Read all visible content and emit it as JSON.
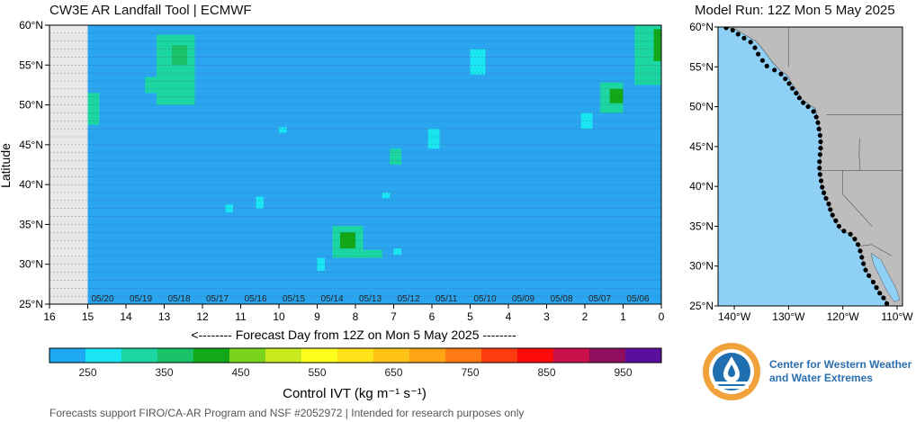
{
  "page": {
    "title": "CW3E AR Landfall Tool | ECMWF",
    "model_run": "Model Run: 12Z Mon 5 May 2025",
    "footer": "Forecasts support FIRO/CA-AR Program and NSF #2052972 | Intended for research purposes only",
    "org_line1": "Center for Western Weather",
    "org_line2": "and Water Extremes"
  },
  "colors": {
    "background_field": "#2aa6f0",
    "missing": "#e8e8e8",
    "land": "#bdbdbd",
    "ocean": "#8fd0f7",
    "landfall_point": "#000000"
  },
  "chart_data": [
    {
      "type": "heatmap",
      "title": "",
      "xlabel": "<-------- Forecast Day from 12Z on Mon 5 May 2025 --------",
      "ylabel": "Latitude",
      "x_ticks": [
        16,
        15,
        14,
        13,
        12,
        11,
        10,
        9,
        8,
        7,
        6,
        5,
        4,
        3,
        2,
        1,
        0
      ],
      "x_range": [
        16,
        0
      ],
      "y_ticks": [
        "25°N",
        "30°N",
        "35°N",
        "40°N",
        "45°N",
        "50°N",
        "55°N",
        "60°N"
      ],
      "y_tick_values": [
        25,
        30,
        35,
        40,
        45,
        50,
        55,
        60
      ],
      "y_range": [
        25,
        60
      ],
      "date_labels": [
        {
          "day": 15,
          "label": "05/20"
        },
        {
          "day": 14,
          "label": "05/19"
        },
        {
          "day": 13,
          "label": "05/18"
        },
        {
          "day": 12,
          "label": "05/17"
        },
        {
          "day": 11,
          "label": "05/16"
        },
        {
          "day": 10,
          "label": "05/15"
        },
        {
          "day": 9,
          "label": "05/14"
        },
        {
          "day": 8,
          "label": "05/13"
        },
        {
          "day": 7,
          "label": "05/12"
        },
        {
          "day": 6,
          "label": "05/11"
        },
        {
          "day": 5,
          "label": "05/10"
        },
        {
          "day": 4,
          "label": "05/09"
        },
        {
          "day": 3,
          "label": "05/08"
        },
        {
          "day": 2,
          "label": "05/07"
        },
        {
          "day": 1,
          "label": "05/06"
        }
      ],
      "missing_range_days": [
        16,
        15
      ],
      "ivt_blobs": [
        {
          "day_start": 15.0,
          "day_end": 14.7,
          "lat_start": 47.5,
          "lat_end": 51.5,
          "ivt": 300
        },
        {
          "day_start": 13.2,
          "day_end": 12.2,
          "lat_start": 50.0,
          "lat_end": 58.8,
          "ivt": 320
        },
        {
          "day_start": 12.8,
          "day_end": 12.4,
          "lat_start": 55.0,
          "lat_end": 57.5,
          "ivt": 390
        },
        {
          "day_start": 13.5,
          "day_end": 12.9,
          "lat_start": 51.5,
          "lat_end": 53.5,
          "ivt": 300
        },
        {
          "day_start": 1.6,
          "day_end": 1.0,
          "lat_start": 49.0,
          "lat_end": 52.8,
          "ivt": 330
        },
        {
          "day_start": 1.35,
          "day_end": 1.0,
          "lat_start": 50.2,
          "lat_end": 52.0,
          "ivt": 400
        },
        {
          "day_start": 0.7,
          "day_end": 0.0,
          "lat_start": 52.5,
          "lat_end": 60.0,
          "ivt": 310
        },
        {
          "day_start": 0.2,
          "day_end": 0.0,
          "lat_start": 55.5,
          "lat_end": 59.5,
          "ivt": 420
        },
        {
          "day_start": 8.6,
          "day_end": 7.8,
          "lat_start": 30.8,
          "lat_end": 34.8,
          "ivt": 320
        },
        {
          "day_start": 8.4,
          "day_end": 8.0,
          "lat_start": 32.0,
          "lat_end": 34.0,
          "ivt": 410
        },
        {
          "day_start": 8.0,
          "day_end": 7.3,
          "lat_start": 30.8,
          "lat_end": 31.8,
          "ivt": 300
        },
        {
          "day_start": 7.1,
          "day_end": 6.8,
          "lat_start": 42.5,
          "lat_end": 44.5,
          "ivt": 300
        },
        {
          "day_start": 6.1,
          "day_end": 5.8,
          "lat_start": 44.5,
          "lat_end": 47.0,
          "ivt": 270
        },
        {
          "day_start": 5.0,
          "day_end": 4.6,
          "lat_start": 53.8,
          "lat_end": 57.0,
          "ivt": 270
        },
        {
          "day_start": 2.1,
          "day_end": 1.8,
          "lat_start": 47.0,
          "lat_end": 49.0,
          "ivt": 260
        },
        {
          "day_start": 10.0,
          "day_end": 9.8,
          "lat_start": 46.5,
          "lat_end": 47.2,
          "ivt": 260
        },
        {
          "day_start": 11.4,
          "day_end": 11.2,
          "lat_start": 36.5,
          "lat_end": 37.5,
          "ivt": 260
        },
        {
          "day_start": 10.6,
          "day_end": 10.4,
          "lat_start": 37.0,
          "lat_end": 38.5,
          "ivt": 260
        },
        {
          "day_start": 9.0,
          "day_end": 8.8,
          "lat_start": 29.2,
          "lat_end": 30.8,
          "ivt": 260
        },
        {
          "day_start": 7.3,
          "day_end": 7.1,
          "lat_start": 38.3,
          "lat_end": 39.0,
          "ivt": 260
        },
        {
          "day_start": 7.0,
          "day_end": 6.8,
          "lat_start": 31.2,
          "lat_end": 32.0,
          "ivt": 270
        }
      ]
    },
    {
      "type": "scatter",
      "title": "Model Run: 12Z Mon 5 May 2025",
      "x_ticks": [
        "140°W",
        "130°W",
        "120°W",
        "110°W"
      ],
      "x_tick_values": [
        -140,
        -130,
        -120,
        -110
      ],
      "x_range": [
        -143,
        -109
      ],
      "y_ticks": [
        "25°N",
        "30°N",
        "35°N",
        "40°N",
        "45°N",
        "50°N",
        "55°N",
        "60°N"
      ],
      "y_tick_values": [
        25,
        30,
        35,
        40,
        45,
        50,
        55,
        60
      ],
      "y_range": [
        25,
        60
      ],
      "coast": [
        [
          -143,
          60.1
        ],
        [
          -140,
          59.8
        ],
        [
          -138,
          59.0
        ],
        [
          -136,
          58.2
        ],
        [
          -134.5,
          57.0
        ],
        [
          -133,
          55.6
        ],
        [
          -131.5,
          54.5
        ],
        [
          -130.3,
          54.0
        ],
        [
          -129.5,
          53.0
        ],
        [
          -128.2,
          51.8
        ],
        [
          -127.6,
          51.0
        ],
        [
          -126.5,
          50.4
        ],
        [
          -125.0,
          49.7
        ],
        [
          -124.7,
          48.5
        ],
        [
          -124.2,
          47.0
        ],
        [
          -124.0,
          46.0
        ],
        [
          -124.0,
          45.0
        ],
        [
          -124.1,
          43.5
        ],
        [
          -124.3,
          42.0
        ],
        [
          -124.0,
          40.5
        ],
        [
          -123.7,
          39.5
        ],
        [
          -122.8,
          38.0
        ],
        [
          -122.4,
          37.0
        ],
        [
          -121.8,
          36.0
        ],
        [
          -120.6,
          34.6
        ],
        [
          -119.0,
          34.1
        ],
        [
          -117.2,
          32.7
        ],
        [
          -116.6,
          31.5
        ],
        [
          -116.2,
          30.5
        ],
        [
          -115.5,
          29.2
        ],
        [
          -114.5,
          28.0
        ],
        [
          -113.3,
          26.8
        ],
        [
          -112.1,
          25.7
        ],
        [
          -111.5,
          25.0
        ]
      ],
      "landfall_points": [
        [
          -141.5,
          59.9
        ],
        [
          -140.3,
          59.6
        ],
        [
          -139.3,
          59.1
        ],
        [
          -138.2,
          58.6
        ],
        [
          -137.0,
          58.1
        ],
        [
          -136.2,
          57.4
        ],
        [
          -135.6,
          56.6
        ],
        [
          -134.8,
          55.8
        ],
        [
          -134.0,
          55.1
        ],
        [
          -132.6,
          54.6
        ],
        [
          -131.4,
          54.1
        ],
        [
          -130.6,
          53.5
        ],
        [
          -129.9,
          52.9
        ],
        [
          -129.3,
          52.3
        ],
        [
          -128.6,
          51.7
        ],
        [
          -128.0,
          51.1
        ],
        [
          -127.3,
          50.5
        ],
        [
          -126.4,
          50.0
        ],
        [
          -125.4,
          49.4
        ],
        [
          -124.9,
          48.7
        ],
        [
          -124.6,
          48.0
        ],
        [
          -124.4,
          47.2
        ],
        [
          -124.2,
          46.4
        ],
        [
          -124.1,
          45.6
        ],
        [
          -124.1,
          44.8
        ],
        [
          -124.2,
          44.0
        ],
        [
          -124.3,
          43.1
        ],
        [
          -124.3,
          42.3
        ],
        [
          -124.2,
          41.5
        ],
        [
          -124.0,
          40.7
        ],
        [
          -123.8,
          39.9
        ],
        [
          -123.5,
          39.2
        ],
        [
          -123.1,
          38.5
        ],
        [
          -122.6,
          37.8
        ],
        [
          -122.3,
          37.1
        ],
        [
          -121.9,
          36.4
        ],
        [
          -121.3,
          35.7
        ],
        [
          -120.7,
          35.0
        ],
        [
          -119.8,
          34.4
        ],
        [
          -118.6,
          34.0
        ],
        [
          -117.8,
          33.4
        ],
        [
          -117.2,
          32.7
        ],
        [
          -116.8,
          31.9
        ],
        [
          -116.5,
          31.1
        ],
        [
          -116.2,
          30.3
        ],
        [
          -115.8,
          29.5
        ],
        [
          -115.2,
          28.8
        ],
        [
          -114.4,
          28.0
        ],
        [
          -113.8,
          27.3
        ],
        [
          -113.2,
          26.6
        ],
        [
          -112.5,
          26.0
        ],
        [
          -111.9,
          25.3
        ]
      ]
    },
    {
      "type": "colorbar",
      "xlabel": "Control IVT (kg m⁻¹ s⁻¹)",
      "boundaries": [
        200,
        250,
        300,
        350,
        400,
        450,
        500,
        550,
        600,
        650,
        700,
        750,
        800,
        850,
        900,
        950,
        1000
      ],
      "tick_labels": [
        "250",
        "350",
        "450",
        "550",
        "650",
        "750",
        "850",
        "950"
      ],
      "tick_values": [
        250,
        350,
        450,
        550,
        650,
        750,
        850,
        950
      ],
      "colors": [
        "#1ea7f3",
        "#19e6f2",
        "#1bd6a2",
        "#19c266",
        "#12a818",
        "#7ad41d",
        "#c9ea1f",
        "#ffff1c",
        "#ffe21a",
        "#ffc318",
        "#ffa415",
        "#ff7a12",
        "#ff3b10",
        "#ff0a0a",
        "#c8104a",
        "#8f0e5e",
        "#5a0f9e"
      ]
    }
  ]
}
